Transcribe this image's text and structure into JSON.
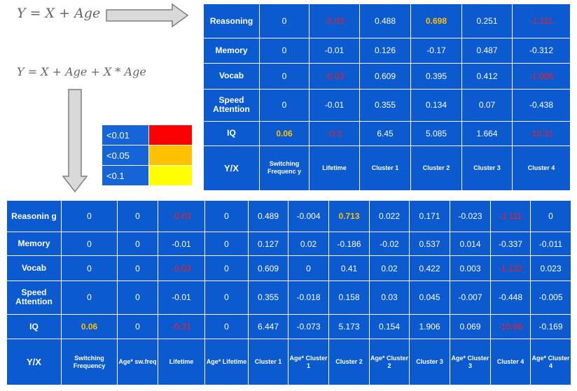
{
  "formulas": {
    "model1": "Y = X + Age",
    "model2": "Y = X + Age + X * Age"
  },
  "legend": {
    "items": [
      {
        "label": "<0.01",
        "color": "#ff0000"
      },
      {
        "label": "<0.05",
        "color": "#ffc000"
      },
      {
        "label": "<0.1",
        "color": "#ffff00"
      }
    ]
  },
  "colors": {
    "table_bg": "#0b5ad0",
    "significant_red": "#ff1a1a",
    "significant_orange": "#ffc000",
    "arrow_fill": "#d9d9d9",
    "arrow_stroke": "#7f7f7f"
  },
  "top_table": {
    "corner": "Y/X",
    "columns": [
      "Switching Frequenc y",
      "Lifetime",
      "Cluster 1",
      "Cluster 2",
      "Cluster 3",
      "Cluster 4"
    ],
    "rows": [
      {
        "name": "Reasoning",
        "cells": [
          {
            "v": "0"
          },
          {
            "v": "-0.03",
            "s": "red"
          },
          {
            "v": "0.488"
          },
          {
            "v": "0.698",
            "s": "orange"
          },
          {
            "v": "0.251"
          },
          {
            "v": "-1.111",
            "s": "red"
          }
        ]
      },
      {
        "name": "Memory",
        "cells": [
          {
            "v": "0"
          },
          {
            "v": "-0.01"
          },
          {
            "v": "0.126"
          },
          {
            "v": "-0.17"
          },
          {
            "v": "0.487"
          },
          {
            "v": "-0.312"
          }
        ]
      },
      {
        "name": "Vocab",
        "cells": [
          {
            "v": "0"
          },
          {
            "v": "-0.03",
            "s": "red"
          },
          {
            "v": "0.609"
          },
          {
            "v": "0.395"
          },
          {
            "v": "0.412"
          },
          {
            "v": "-1.086",
            "s": "red"
          }
        ]
      },
      {
        "name": "Speed Attention",
        "cells": [
          {
            "v": "0"
          },
          {
            "v": "-0.01"
          },
          {
            "v": "0.355"
          },
          {
            "v": "0.134"
          },
          {
            "v": "0.07"
          },
          {
            "v": "-0.438"
          }
        ]
      },
      {
        "name": "IQ",
        "cells": [
          {
            "v": "0.06",
            "s": "orange"
          },
          {
            "v": "-0.3",
            "s": "red"
          },
          {
            "v": "6.45"
          },
          {
            "v": "5.085"
          },
          {
            "v": "1.664"
          },
          {
            "v": "-10.31",
            "s": "red"
          }
        ]
      }
    ]
  },
  "bottom_table": {
    "corner": "Y/X",
    "columns": [
      "Switching Frequency",
      "Age* sw.freq",
      "Lifetime",
      "Age* Lifetime",
      "Cluster 1",
      "Age* Cluster 1",
      "Cluster 2",
      "Age* Cluster 2",
      "Cluster 3",
      "Age* Cluster 3",
      "Cluster 4",
      "Age* Cluster 4"
    ],
    "rows": [
      {
        "name": "Reasonin g",
        "cells": [
          {
            "v": "0"
          },
          {
            "v": "0"
          },
          {
            "v": "-0.03",
            "s": "red"
          },
          {
            "v": "0"
          },
          {
            "v": "0.489"
          },
          {
            "v": "-0.004"
          },
          {
            "v": "0.713",
            "s": "orange"
          },
          {
            "v": "0.022"
          },
          {
            "v": "0.171"
          },
          {
            "v": "-0.023"
          },
          {
            "v": "-1.111",
            "s": "red"
          },
          {
            "v": "0"
          }
        ]
      },
      {
        "name": "Memory",
        "cells": [
          {
            "v": "0"
          },
          {
            "v": "0"
          },
          {
            "v": "-0.01"
          },
          {
            "v": "0"
          },
          {
            "v": "0.127"
          },
          {
            "v": "0.02"
          },
          {
            "v": "-0.186"
          },
          {
            "v": "-0.02"
          },
          {
            "v": "0.537"
          },
          {
            "v": "0.014"
          },
          {
            "v": "-0.337"
          },
          {
            "v": "-0.011"
          }
        ]
      },
      {
        "name": "Vocab",
        "cells": [
          {
            "v": "0"
          },
          {
            "v": "0"
          },
          {
            "v": "-0.03",
            "s": "red"
          },
          {
            "v": "0"
          },
          {
            "v": "0.609"
          },
          {
            "v": "0"
          },
          {
            "v": "0.41"
          },
          {
            "v": "0.02"
          },
          {
            "v": "0.422"
          },
          {
            "v": "0.003"
          },
          {
            "v": "-1.132",
            "s": "red"
          },
          {
            "v": "0.023"
          }
        ]
      },
      {
        "name": "Speed Attention",
        "cells": [
          {
            "v": "0"
          },
          {
            "v": "0"
          },
          {
            "v": "-0.01"
          },
          {
            "v": "0"
          },
          {
            "v": "0.355"
          },
          {
            "v": "-0.018"
          },
          {
            "v": "0.158"
          },
          {
            "v": "0.03"
          },
          {
            "v": "0.045"
          },
          {
            "v": "-0.007"
          },
          {
            "v": "-0.448"
          },
          {
            "v": "-0.005"
          }
        ]
      },
      {
        "name": "IQ",
        "cells": [
          {
            "v": "0.06",
            "s": "orange"
          },
          {
            "v": "0"
          },
          {
            "v": "-0.31",
            "s": "red"
          },
          {
            "v": "0"
          },
          {
            "v": "6.447"
          },
          {
            "v": "-0.073"
          },
          {
            "v": "5.173"
          },
          {
            "v": "0.154"
          },
          {
            "v": "1.906"
          },
          {
            "v": "0.069"
          },
          {
            "v": "-10.66",
            "s": "red"
          },
          {
            "v": "-0.169"
          }
        ]
      }
    ]
  }
}
